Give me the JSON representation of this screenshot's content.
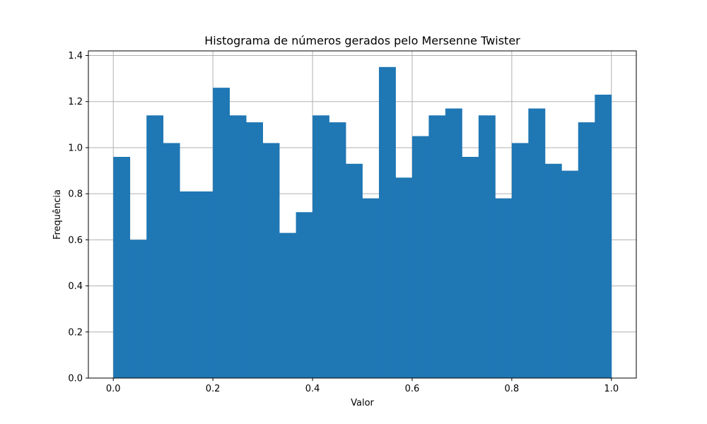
{
  "chart_data": {
    "type": "bar",
    "title": "Histograma de números gerados pelo Mersenne Twister",
    "xlabel": "Valor",
    "ylabel": "Frequência",
    "xlim": [
      -0.05,
      1.05
    ],
    "ylim": [
      0,
      1.42
    ],
    "xticks": [
      0.0,
      0.2,
      0.4,
      0.6,
      0.8,
      1.0
    ],
    "xtick_labels": [
      "0.0",
      "0.2",
      "0.4",
      "0.6",
      "0.8",
      "1.0"
    ],
    "yticks": [
      0.0,
      0.2,
      0.4,
      0.6,
      0.8,
      1.0,
      1.2,
      1.4
    ],
    "ytick_labels": [
      "0.0",
      "0.2",
      "0.4",
      "0.6",
      "0.8",
      "1.0",
      "1.2",
      "1.4"
    ],
    "grid": true,
    "bin_edges": [
      0.0,
      0.0333,
      0.0667,
      0.1,
      0.1333,
      0.1667,
      0.2,
      0.2333,
      0.2667,
      0.3,
      0.3333,
      0.3667,
      0.4,
      0.4333,
      0.4667,
      0.5,
      0.5333,
      0.5667,
      0.6,
      0.6333,
      0.6667,
      0.7,
      0.7333,
      0.7667,
      0.8,
      0.8333,
      0.8667,
      0.9,
      0.9333,
      0.9667,
      1.0
    ],
    "values": [
      0.96,
      0.6,
      1.14,
      1.02,
      0.81,
      0.81,
      1.26,
      1.14,
      1.11,
      1.02,
      0.63,
      0.72,
      1.14,
      1.11,
      0.93,
      0.78,
      1.35,
      0.87,
      1.05,
      1.14,
      1.17,
      0.96,
      1.14,
      0.78,
      1.02,
      1.17,
      0.93,
      0.9,
      1.11,
      1.23
    ],
    "colors": {
      "bar": "#1f77b4",
      "grid": "#b0b0b0",
      "axes": "#000000"
    }
  }
}
